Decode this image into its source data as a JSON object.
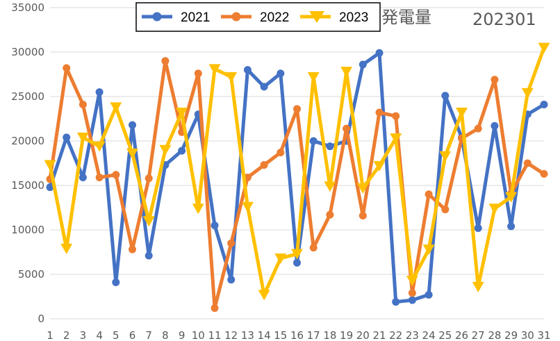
{
  "chart_data": {
    "type": "line",
    "title": "発電量",
    "subtitle": "202301",
    "xlabel": "",
    "ylabel": "",
    "ylim": [
      0,
      35000
    ],
    "ytick_step": 5000,
    "yticks": [
      "0",
      "5000",
      "10000",
      "15000",
      "20000",
      "25000",
      "30000",
      "35000"
    ],
    "x": [
      "1",
      "2",
      "3",
      "4",
      "5",
      "6",
      "7",
      "8",
      "9",
      "10",
      "11",
      "12",
      "13",
      "14",
      "15",
      "16",
      "17",
      "18",
      "19",
      "20",
      "21",
      "22",
      "23",
      "24",
      "25",
      "26",
      "27",
      "28",
      "29",
      "30",
      "31"
    ],
    "grid": true,
    "legend_position": "top",
    "series": [
      {
        "name": "2021",
        "color": "#4472C4",
        "marker": "circle",
        "values": [
          14800,
          20400,
          15900,
          25500,
          4100,
          21800,
          7100,
          17300,
          18900,
          23000,
          10500,
          4400,
          28000,
          26100,
          27600,
          6300,
          20000,
          19400,
          20000,
          28600,
          29900,
          1900,
          2100,
          2700,
          25100,
          20400,
          10200,
          21700,
          10400,
          23000,
          24100
        ]
      },
      {
        "name": "2022",
        "color": "#ED7D31",
        "marker": "circle",
        "values": [
          15700,
          28200,
          24100,
          15900,
          16200,
          7800,
          15800,
          29000,
          21000,
          27600,
          1200,
          8500,
          15900,
          17300,
          18700,
          23600,
          8000,
          11700,
          21400,
          11600,
          23200,
          22800,
          2900,
          14000,
          12300,
          20300,
          21400,
          26900,
          14100,
          17500,
          16300
        ]
      },
      {
        "name": "2023",
        "color": "#FFC000",
        "marker": "triangle-down",
        "values": [
          17300,
          7900,
          20400,
          19400,
          23800,
          18600,
          11000,
          19000,
          23200,
          12400,
          28100,
          27200,
          12600,
          2700,
          6800,
          7300,
          27200,
          14900,
          27800,
          14700,
          17200,
          20300,
          4300,
          7800,
          18300,
          23200,
          3600,
          12400,
          13700,
          25400,
          30500
        ]
      }
    ]
  }
}
